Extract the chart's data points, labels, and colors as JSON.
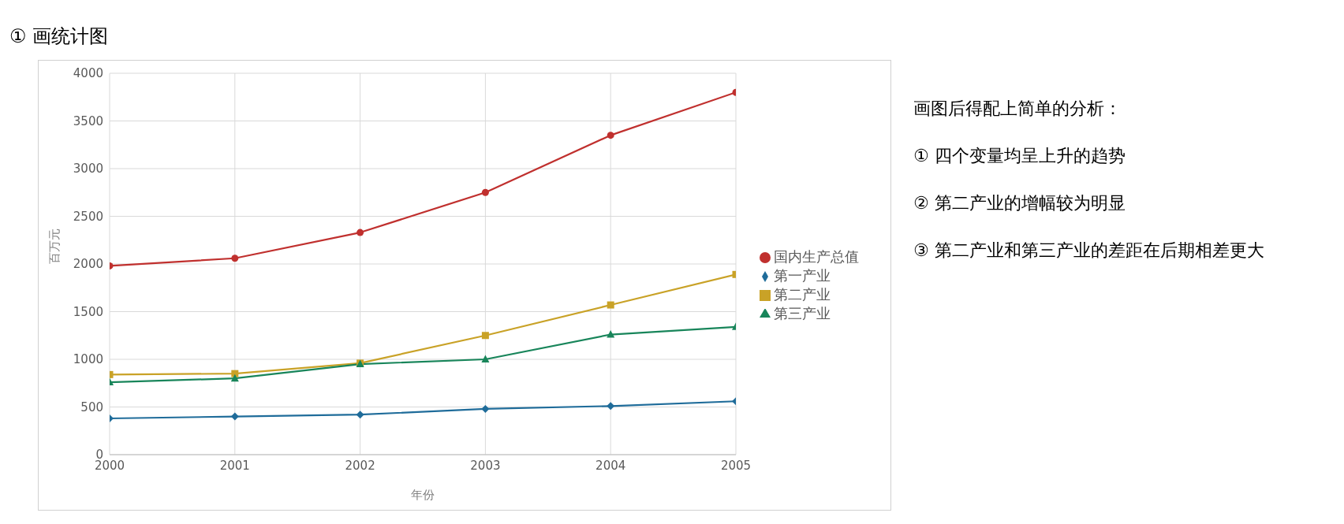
{
  "chart_data": {
    "type": "line",
    "title": "① 画统计图",
    "xlabel": "年份",
    "ylabel": "百万元",
    "x": [
      2000,
      2001,
      2002,
      2003,
      2004,
      2005
    ],
    "series": [
      {
        "name": "国内生产总值",
        "color": "#c0302e",
        "marker": "circle",
        "values": [
          1980,
          2060,
          2330,
          2750,
          3350,
          3800
        ]
      },
      {
        "name": "第一产业",
        "color": "#1f6c9a",
        "marker": "diamond",
        "values": [
          380,
          400,
          420,
          480,
          510,
          560
        ]
      },
      {
        "name": "第二产业",
        "color": "#c9a227",
        "marker": "square",
        "values": [
          840,
          850,
          960,
          1250,
          1570,
          1890
        ]
      },
      {
        "name": "第三产业",
        "color": "#18855a",
        "marker": "triangle",
        "values": [
          760,
          800,
          950,
          1000,
          1260,
          1340
        ]
      }
    ],
    "xlim": [
      2000,
      2005
    ],
    "xticks": [
      2000,
      2001,
      2002,
      2003,
      2004,
      2005
    ],
    "ylim": [
      0,
      4000
    ],
    "yticks": [
      0,
      500,
      1000,
      1500,
      2000,
      2500,
      3000,
      3500,
      4000
    ],
    "grid": true,
    "legend": "right",
    "annotations": [
      "画图后得配上简单的分析：",
      "① 四个变量均呈上升的趋势",
      "② 第二产业的增幅较为明显",
      "③ 第二产业和第三产业的差距在后期相差更大"
    ]
  }
}
